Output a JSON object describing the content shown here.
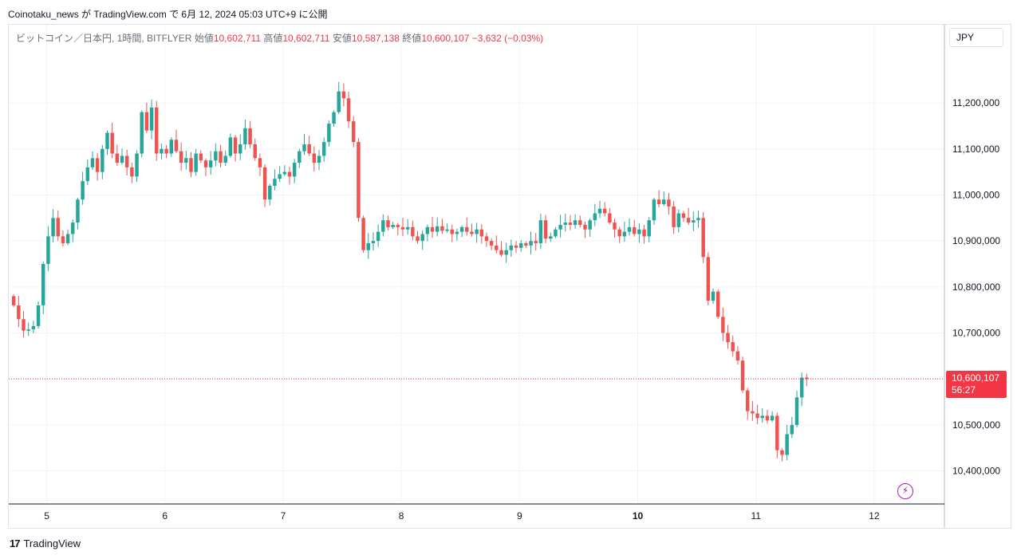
{
  "publish_line": "Coinotaku_news が TradingView.com で 6月 12, 2024 05:03 UTC+9 に公開",
  "legend": {
    "symbol": "ビットコイン／日本円, 1時間, BITFLYER",
    "open_label": "始値",
    "open": "10,602,711",
    "high_label": "高値",
    "high": "10,602,711",
    "low_label": "安値",
    "low": "10,587,138",
    "close_label": "終値",
    "close": "10,600,107",
    "change": "−3,632 (−0.03%)"
  },
  "currency_button": "JPY",
  "last_price_tag": {
    "price": "10,600,107",
    "countdown": "56:27"
  },
  "footer": {
    "logo_mark": "17",
    "logo_text": "TradingView"
  },
  "alert_icon": "lightning-icon",
  "colors": {
    "up": "#26a69a",
    "down": "#ef5350",
    "grid": "#f0f3fa",
    "last_price": "#f23645"
  },
  "chart_data": {
    "type": "candlestick",
    "title": "",
    "ylabel": "",
    "y_tick_labels": [
      "11,200,000",
      "11,100,000",
      "11,000,000",
      "10,900,000",
      "10,800,000",
      "10,700,000",
      "10,600,000",
      "10,500,000",
      "10,400,000"
    ],
    "y_ticks": [
      11200000,
      11100000,
      11000000,
      10900000,
      10800000,
      10700000,
      10600000,
      10500000,
      10400000
    ],
    "x_tick_labels": [
      "5",
      "6",
      "7",
      "8",
      "9",
      "10",
      "11",
      "12"
    ],
    "x_ticks_hours": [
      15,
      39,
      63,
      87,
      111,
      135,
      159,
      183
    ],
    "ylim": [
      10330000,
      11370000
    ],
    "xlim_hours": [
      7.3,
      197.1
    ],
    "last_price": 10600107,
    "grid": true,
    "series": [
      {
        "type": "segments",
        "values": [
          [
            10780000,
            10760000,
            -1
          ],
          [
            10760000,
            10730000,
            -1
          ],
          [
            10730000,
            10705000,
            -1
          ],
          [
            10705000,
            10708000,
            1
          ],
          [
            10708000,
            10715000,
            1
          ],
          [
            10715000,
            10760000,
            1
          ],
          [
            10760000,
            10850000,
            1
          ],
          [
            10850000,
            10910000,
            1
          ],
          [
            10910000,
            10950000,
            1
          ],
          [
            10950000,
            10910000,
            -1
          ],
          [
            10910000,
            10895000,
            -1
          ],
          [
            10895000,
            10915000,
            1
          ],
          [
            10915000,
            10940000,
            1
          ],
          [
            10940000,
            10990000,
            1
          ],
          [
            10990000,
            11030000,
            1
          ],
          [
            11030000,
            11060000,
            1
          ],
          [
            11060000,
            11080000,
            1
          ],
          [
            11080000,
            11050000,
            -1
          ],
          [
            11050000,
            11100000,
            1
          ],
          [
            11100000,
            11135000,
            1
          ],
          [
            11135000,
            11090000,
            -1
          ],
          [
            11090000,
            11070000,
            -1
          ],
          [
            11070000,
            11085000,
            1
          ],
          [
            11085000,
            11060000,
            -1
          ],
          [
            11060000,
            11040000,
            -1
          ],
          [
            11040000,
            11090000,
            1
          ],
          [
            11090000,
            11180000,
            1
          ],
          [
            11180000,
            11140000,
            -1
          ],
          [
            11140000,
            11190000,
            1
          ],
          [
            11190000,
            11090000,
            -1
          ],
          [
            11090000,
            11100000,
            1
          ],
          [
            11100000,
            11090000,
            -1
          ],
          [
            11090000,
            11120000,
            1
          ],
          [
            11120000,
            11095000,
            -1
          ],
          [
            11095000,
            11070000,
            -1
          ],
          [
            11070000,
            11080000,
            1
          ],
          [
            11080000,
            11050000,
            -1
          ],
          [
            11050000,
            11090000,
            1
          ],
          [
            11090000,
            11075000,
            -1
          ],
          [
            11075000,
            11060000,
            -1
          ],
          [
            11060000,
            11075000,
            1
          ],
          [
            11075000,
            11095000,
            1
          ],
          [
            11095000,
            11070000,
            -1
          ],
          [
            11070000,
            11085000,
            1
          ],
          [
            11085000,
            11125000,
            1
          ],
          [
            11125000,
            11090000,
            -1
          ],
          [
            11090000,
            11110000,
            1
          ],
          [
            11110000,
            11145000,
            1
          ],
          [
            11145000,
            11110000,
            -1
          ],
          [
            11110000,
            11080000,
            -1
          ],
          [
            11080000,
            11060000,
            -1
          ],
          [
            11060000,
            10990000,
            -1
          ],
          [
            10990000,
            11020000,
            1
          ],
          [
            11020000,
            11035000,
            1
          ],
          [
            11035000,
            11045000,
            1
          ],
          [
            11045000,
            11050000,
            1
          ],
          [
            11050000,
            11040000,
            -1
          ],
          [
            11040000,
            11070000,
            1
          ],
          [
            11070000,
            11095000,
            1
          ],
          [
            11095000,
            11110000,
            1
          ],
          [
            11110000,
            11090000,
            -1
          ],
          [
            11090000,
            11070000,
            -1
          ],
          [
            11070000,
            11085000,
            1
          ],
          [
            11085000,
            11115000,
            1
          ],
          [
            11115000,
            11155000,
            1
          ],
          [
            11155000,
            11180000,
            1
          ],
          [
            11180000,
            11225000,
            1
          ],
          [
            11225000,
            11210000,
            -1
          ],
          [
            11210000,
            11160000,
            -1
          ],
          [
            11160000,
            11115000,
            -1
          ],
          [
            11115000,
            10950000,
            -1
          ],
          [
            10950000,
            10880000,
            -1
          ],
          [
            10880000,
            10895000,
            1
          ],
          [
            10895000,
            10900000,
            1
          ],
          [
            10900000,
            10920000,
            1
          ],
          [
            10920000,
            10945000,
            1
          ],
          [
            10945000,
            10930000,
            -1
          ],
          [
            10930000,
            10935000,
            1
          ],
          [
            10935000,
            10930000,
            -1
          ],
          [
            10930000,
            10925000,
            -1
          ],
          [
            10925000,
            10930000,
            1
          ],
          [
            10930000,
            10910000,
            -1
          ],
          [
            10910000,
            10900000,
            -1
          ],
          [
            10900000,
            10915000,
            1
          ],
          [
            10915000,
            10930000,
            1
          ],
          [
            10930000,
            10920000,
            -1
          ],
          [
            10920000,
            10932000,
            1
          ],
          [
            10932000,
            10922000,
            -1
          ],
          [
            10922000,
            10925000,
            1
          ],
          [
            10925000,
            10915000,
            -1
          ],
          [
            10915000,
            10920000,
            1
          ],
          [
            10920000,
            10930000,
            1
          ],
          [
            10930000,
            10920000,
            -1
          ],
          [
            10920000,
            10915000,
            -1
          ],
          [
            10915000,
            10925000,
            1
          ],
          [
            10925000,
            10910000,
            -1
          ],
          [
            10910000,
            10900000,
            -1
          ],
          [
            10900000,
            10890000,
            -1
          ],
          [
            10890000,
            10880000,
            -1
          ],
          [
            10880000,
            10870000,
            -1
          ],
          [
            10870000,
            10880000,
            1
          ],
          [
            10880000,
            10890000,
            1
          ],
          [
            10890000,
            10885000,
            -1
          ],
          [
            10885000,
            10895000,
            1
          ],
          [
            10895000,
            10890000,
            -1
          ],
          [
            10890000,
            10900000,
            1
          ],
          [
            10900000,
            10895000,
            -1
          ],
          [
            10895000,
            10945000,
            1
          ],
          [
            10945000,
            10905000,
            -1
          ],
          [
            10905000,
            10910000,
            1
          ],
          [
            10910000,
            10925000,
            1
          ],
          [
            10925000,
            10935000,
            1
          ],
          [
            10935000,
            10940000,
            1
          ],
          [
            10940000,
            10935000,
            -1
          ],
          [
            10935000,
            10945000,
            1
          ],
          [
            10945000,
            10935000,
            -1
          ],
          [
            10935000,
            10925000,
            -1
          ],
          [
            10925000,
            10945000,
            1
          ],
          [
            10945000,
            10960000,
            1
          ],
          [
            10960000,
            10970000,
            1
          ],
          [
            10970000,
            10960000,
            -1
          ],
          [
            10960000,
            10940000,
            -1
          ],
          [
            10940000,
            10925000,
            -1
          ],
          [
            10925000,
            10910000,
            -1
          ],
          [
            10910000,
            10920000,
            1
          ],
          [
            10920000,
            10930000,
            1
          ],
          [
            10930000,
            10915000,
            -1
          ],
          [
            10915000,
            10925000,
            1
          ],
          [
            10925000,
            10910000,
            -1
          ],
          [
            10910000,
            10945000,
            1
          ],
          [
            10945000,
            10990000,
            1
          ],
          [
            10990000,
            10980000,
            -1
          ],
          [
            10980000,
            10990000,
            1
          ],
          [
            10990000,
            10975000,
            -1
          ],
          [
            10975000,
            10930000,
            -1
          ],
          [
            10930000,
            10960000,
            1
          ],
          [
            10960000,
            10950000,
            -1
          ],
          [
            10950000,
            10940000,
            -1
          ],
          [
            10940000,
            10945000,
            1
          ],
          [
            10945000,
            10950000,
            1
          ],
          [
            10950000,
            10865000,
            -1
          ],
          [
            10865000,
            10770000,
            -1
          ],
          [
            10770000,
            10790000,
            1
          ],
          [
            10790000,
            10735000,
            -1
          ],
          [
            10735000,
            10700000,
            -1
          ],
          [
            10700000,
            10680000,
            -1
          ],
          [
            10680000,
            10660000,
            -1
          ],
          [
            10660000,
            10640000,
            -1
          ],
          [
            10640000,
            10575000,
            -1
          ],
          [
            10575000,
            10530000,
            -1
          ],
          [
            10530000,
            10525000,
            -1
          ],
          [
            10525000,
            10515000,
            -1
          ],
          [
            10515000,
            10520000,
            1
          ],
          [
            10520000,
            10510000,
            -1
          ],
          [
            10510000,
            10520000,
            1
          ],
          [
            10520000,
            10445000,
            -1
          ],
          [
            10445000,
            10435000,
            -1
          ],
          [
            10435000,
            10480000,
            1
          ],
          [
            10480000,
            10500000,
            1
          ],
          [
            10500000,
            10560000,
            1
          ],
          [
            10560000,
            10603000,
            1
          ],
          [
            10603000,
            10600107,
            -1
          ]
        ]
      }
    ]
  }
}
